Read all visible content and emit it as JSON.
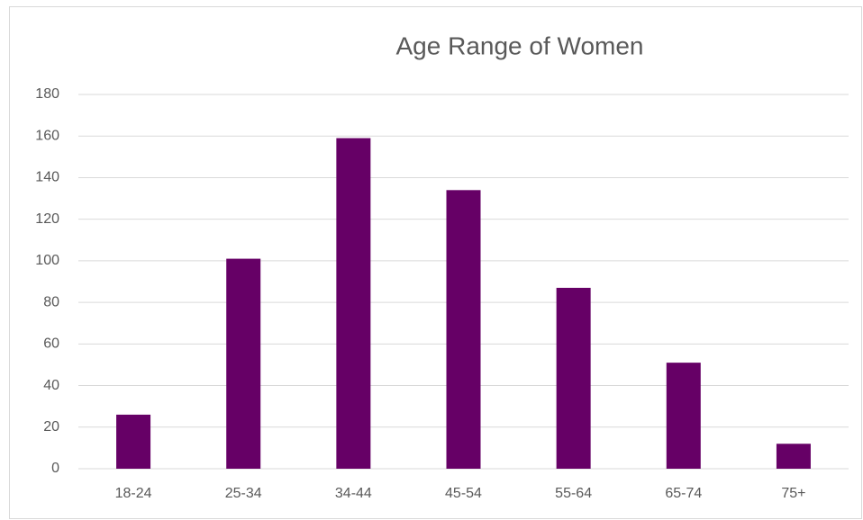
{
  "chart_data": {
    "type": "bar",
    "title": "Age Range of Women",
    "categories": [
      "18-24",
      "25-34",
      "34-44",
      "45-54",
      "55-64",
      "65-74",
      "75+"
    ],
    "values": [
      26,
      101,
      159,
      134,
      87,
      51,
      12
    ],
    "color": "#660066",
    "ylim": [
      0,
      180
    ],
    "yticks": [
      0,
      20,
      40,
      60,
      80,
      100,
      120,
      140,
      160,
      180
    ],
    "grid": true
  }
}
